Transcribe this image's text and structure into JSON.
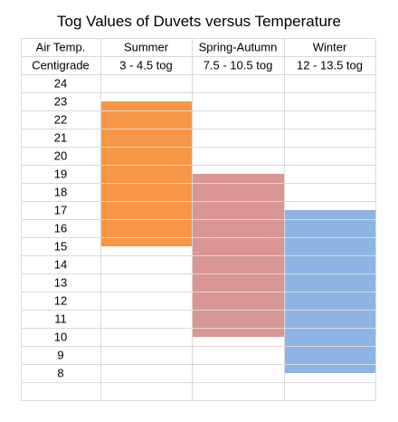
{
  "chart_data": {
    "type": "table",
    "title": "Tog Values of Duvets versus Temperature",
    "header": {
      "row1": [
        "Air Temp.",
        "Summer",
        "Spring-Autumn",
        "Winter"
      ],
      "row2": [
        "Centigrade",
        "3 - 4.5 tog",
        "7.5 - 10.5 tog",
        "12 - 13.5 tog"
      ]
    },
    "temperatures": [
      24,
      23,
      22,
      21,
      20,
      19,
      18,
      17,
      16,
      15,
      14,
      13,
      12,
      11,
      10,
      9,
      8
    ],
    "series": [
      {
        "name": "Summer",
        "tog": "3 - 4.5 tog",
        "temp_range": [
          15,
          23
        ],
        "color": "#f79646"
      },
      {
        "name": "Spring-Autumn",
        "tog": "7.5 - 10.5 tog",
        "temp_range": [
          10,
          19
        ],
        "color": "#da9694"
      },
      {
        "name": "Winter",
        "tog": "12 - 13.5 tog",
        "temp_range": [
          8,
          17
        ],
        "color": "#8db4e2"
      }
    ],
    "grid": true
  }
}
